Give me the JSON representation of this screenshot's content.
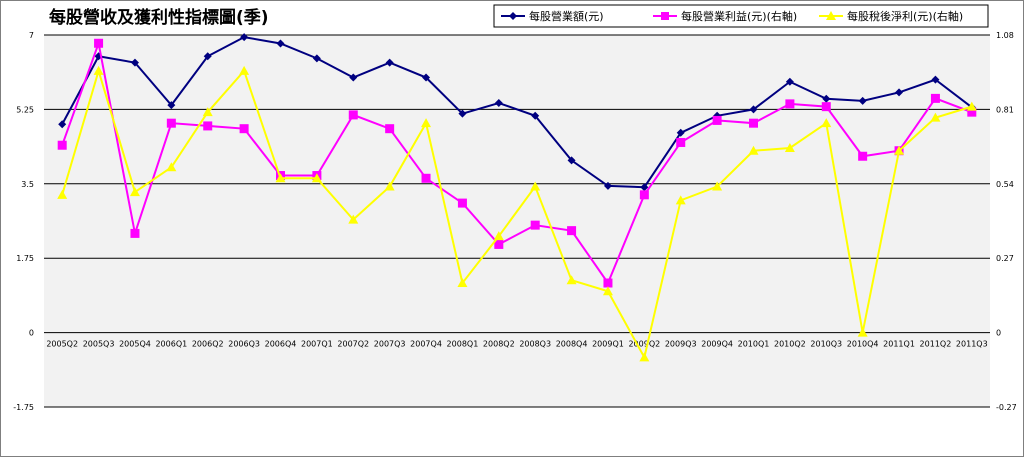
{
  "chart_data": {
    "type": "line",
    "title": "每股營收及獲利性指標圖(季)",
    "categories": [
      "2005Q2",
      "2005Q3",
      "2005Q4",
      "2006Q1",
      "2006Q2",
      "2006Q3",
      "2006Q4",
      "2007Q1",
      "2007Q2",
      "2007Q3",
      "2007Q4",
      "2008Q1",
      "2008Q2",
      "2008Q3",
      "2008Q4",
      "2009Q1",
      "2009Q2",
      "2009Q3",
      "2009Q4",
      "2010Q1",
      "2010Q2",
      "2010Q3",
      "2010Q4",
      "2011Q1",
      "2011Q2",
      "2011Q3"
    ],
    "y_left": {
      "min": -1.75,
      "max": 7,
      "ticks": [
        "7",
        "5.25",
        "3.5",
        "1.75",
        "0",
        "-1.75"
      ]
    },
    "y_right": {
      "min": -0.27,
      "max": 1.08,
      "ticks": [
        "1.08",
        "0.81",
        "0.54",
        "0.27",
        "0",
        "-0.27"
      ]
    },
    "gridlines": [
      7,
      5.25,
      3.5,
      1.75,
      0,
      -1.75
    ],
    "series": [
      {
        "name": "每股營業額(元)",
        "axis": "left",
        "color": "#000080",
        "marker": "diamond",
        "values": [
          4.9,
          6.5,
          6.35,
          5.35,
          6.5,
          6.95,
          6.8,
          6.45,
          6.0,
          6.35,
          6.0,
          5.15,
          5.4,
          5.1,
          4.05,
          3.45,
          3.42,
          4.7,
          5.1,
          5.25,
          5.9,
          5.5,
          5.45,
          5.65,
          5.95,
          5.3
        ]
      },
      {
        "name": "每股營業利益(元)(右軸)",
        "axis": "right",
        "color": "#ff00ff",
        "marker": "square",
        "values": [
          0.68,
          1.05,
          0.36,
          0.76,
          0.75,
          0.74,
          0.57,
          0.57,
          0.79,
          0.74,
          0.56,
          0.47,
          0.32,
          0.39,
          0.37,
          0.18,
          0.5,
          0.69,
          0.77,
          0.76,
          0.83,
          0.82,
          0.64,
          0.66,
          0.85,
          0.8
        ]
      },
      {
        "name": "每股稅後淨利(元)(右軸)",
        "axis": "right",
        "color": "#ffff00",
        "marker": "triangle",
        "values": [
          0.5,
          0.95,
          0.51,
          0.6,
          0.8,
          0.95,
          0.56,
          0.56,
          0.41,
          0.53,
          0.76,
          0.18,
          0.35,
          0.53,
          0.19,
          0.15,
          -0.09,
          0.48,
          0.53,
          0.66,
          0.67,
          0.76,
          0.0,
          0.66,
          0.78,
          0.82
        ]
      }
    ],
    "legend": "top-right",
    "grid": true
  }
}
